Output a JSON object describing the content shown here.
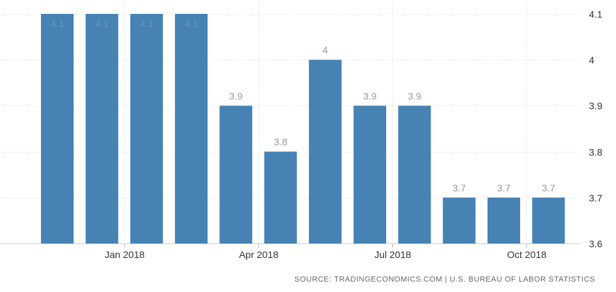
{
  "chart_data": {
    "type": "bar",
    "title": "",
    "xlabel": "",
    "ylabel": "",
    "months": [
      "2017-12",
      "2018-01",
      "2018-02",
      "2018-03",
      "2018-04",
      "2018-05",
      "2018-06",
      "2018-07",
      "2018-08",
      "2018-09",
      "2018-10",
      "2018-11"
    ],
    "values": [
      4.1,
      4.1,
      4.1,
      4.1,
      3.9,
      3.8,
      4.0,
      3.9,
      3.9,
      3.7,
      3.7,
      3.7
    ],
    "data_labels": [
      "4.1",
      "4.1",
      "4.1",
      "4.1",
      "3.9",
      "3.8",
      "4",
      "3.9",
      "3.9",
      "3.7",
      "3.7",
      "3.7"
    ],
    "x_ticks": [
      {
        "month": "2018-01",
        "label": "Jan 2018"
      },
      {
        "month": "2018-04",
        "label": "Apr 2018"
      },
      {
        "month": "2018-07",
        "label": "Jul 2018"
      },
      {
        "month": "2018-10",
        "label": "Oct 2018"
      }
    ],
    "y_ticks": [
      {
        "value": 3.6,
        "label": "3.6"
      },
      {
        "value": 3.7,
        "label": "3.7"
      },
      {
        "value": 3.8,
        "label": "3.8"
      },
      {
        "value": 3.9,
        "label": "3.9"
      },
      {
        "value": 4.0,
        "label": "4"
      },
      {
        "value": 4.1,
        "label": "4.1"
      }
    ],
    "ylim": [
      3.6,
      4.1
    ],
    "y_axis_side": "right",
    "grid": true,
    "bar_color": "#4682b4",
    "label_color": "#999999",
    "inside_label_color": "#6f93b8",
    "grid_color": "#d9d9d9"
  },
  "source": "SOURCE: TRADINGECONOMICS.COM | U.S. BUREAU OF LABOR STATISTICS"
}
